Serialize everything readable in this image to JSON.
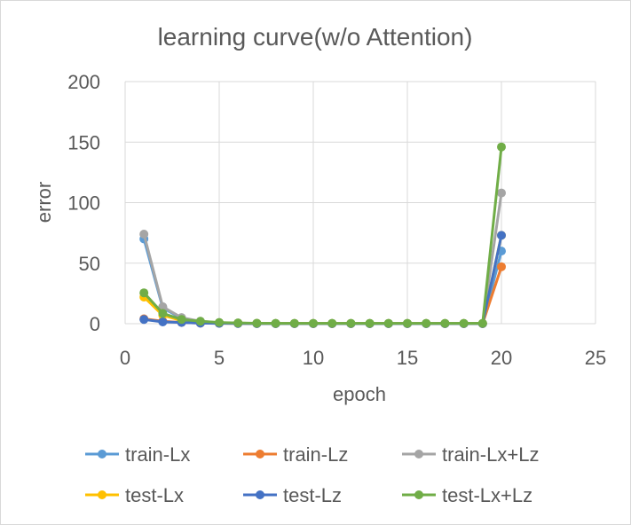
{
  "chart_data": {
    "type": "line",
    "title": "learning curve(w/o Attention)",
    "xlabel": "epoch",
    "ylabel": "error",
    "xlim": [
      0,
      25
    ],
    "ylim": [
      0,
      200
    ],
    "xticks": [
      "0",
      "5",
      "10",
      "15",
      "20",
      "25"
    ],
    "yticks": [
      "0",
      "50",
      "100",
      "150",
      "200"
    ],
    "grid": true,
    "legend_position": "bottom",
    "x": [
      1,
      2,
      3,
      4,
      5,
      6,
      7,
      8,
      9,
      10,
      11,
      12,
      13,
      14,
      15,
      16,
      17,
      18,
      19,
      20
    ],
    "series": [
      {
        "name": "train-Lx",
        "color": "#5B9BD5",
        "values": [
          70,
          13,
          4.5,
          1.5,
          0.5,
          0.3,
          0.2,
          0.1,
          0.1,
          0.1,
          0.1,
          0.1,
          0.1,
          0.1,
          0.1,
          0.1,
          0.1,
          0.1,
          0.1,
          60
        ]
      },
      {
        "name": "train-Lz",
        "color": "#ED7D31",
        "values": [
          4,
          2,
          1,
          0.5,
          0.3,
          0.2,
          0.1,
          0.1,
          0.1,
          0.1,
          0.1,
          0.1,
          0.1,
          0.1,
          0.1,
          0.1,
          0.1,
          0.1,
          0.1,
          47
        ]
      },
      {
        "name": "train-Lx+Lz",
        "color": "#A5A5A5",
        "values": [
          74,
          14,
          5,
          2,
          0.8,
          0.5,
          0.3,
          0.2,
          0.2,
          0.2,
          0.2,
          0.2,
          0.2,
          0.2,
          0.2,
          0.2,
          0.2,
          0.2,
          0.2,
          108
        ]
      },
      {
        "name": "test-Lx",
        "color": "#FFC000",
        "values": [
          22,
          7,
          2.5,
          1.5,
          0.8,
          0.5,
          0.3,
          0.2,
          0.2,
          0.2,
          0.2,
          0.2,
          0.2,
          0.2,
          0.2,
          0.2,
          0.2,
          0.2,
          0.2,
          73
        ]
      },
      {
        "name": "test-Lz",
        "color": "#4472C4",
        "values": [
          3.5,
          1.5,
          1,
          0.5,
          0.3,
          0.2,
          0.1,
          0.1,
          0.1,
          0.1,
          0.1,
          0.1,
          0.1,
          0.1,
          0.1,
          0.1,
          0.1,
          0.1,
          0.1,
          73
        ]
      },
      {
        "name": "test-Lx+Lz",
        "color": "#70AD47",
        "values": [
          25.5,
          8.5,
          3.5,
          2,
          1,
          0.6,
          0.4,
          0.3,
          0.3,
          0.3,
          0.3,
          0.3,
          0.3,
          0.3,
          0.3,
          0.3,
          0.3,
          0.3,
          0.3,
          146
        ]
      }
    ]
  }
}
